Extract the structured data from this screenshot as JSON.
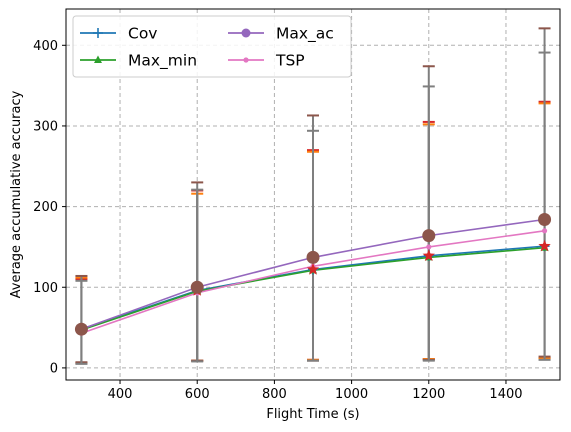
{
  "chart_data": {
    "type": "line",
    "xlabel": "Flight Time (s)",
    "ylabel": "Average accumulative accuracy",
    "x": [
      300,
      600,
      900,
      1200,
      1500
    ],
    "xlim": [
      260,
      1540
    ],
    "ylim": [
      -15,
      445
    ],
    "xticks": [
      400,
      600,
      800,
      1000,
      1200,
      1400
    ],
    "yticks": [
      0,
      100,
      200,
      300,
      400
    ],
    "grid": true,
    "legend_position": "top-left",
    "series": [
      {
        "name": "Cov",
        "values": [
          48,
          96,
          122,
          139,
          151
        ],
        "color": "#1f77b4",
        "marker": "plus",
        "err_low": [
          6,
          9,
          10,
          11,
          12
        ],
        "err_high": [
          110,
          220,
          270,
          305,
          330
        ]
      },
      {
        "name": "Max_min",
        "values": [
          47,
          95,
          121,
          137,
          149
        ],
        "color": "#2ca02c",
        "marker": "triangle",
        "err_low": [
          6,
          9,
          10,
          11,
          12
        ],
        "err_high": [
          112,
          216,
          268,
          302,
          328
        ]
      },
      {
        "name": "Max_ac",
        "values": [
          48,
          100,
          137,
          164,
          184
        ],
        "color": "#9467bd",
        "marker": "circle",
        "err_low": [
          7,
          9,
          9,
          10,
          14
        ],
        "err_high": [
          114,
          230,
          313,
          374,
          421
        ]
      },
      {
        "name": "TSP",
        "values": [
          43,
          93,
          126,
          150,
          170
        ],
        "color": "#e377c2",
        "marker": "dot",
        "err_low": [
          5,
          8,
          9,
          9,
          10
        ],
        "err_high": [
          108,
          221,
          294,
          349,
          391
        ]
      }
    ],
    "errorbar_color": "#7f7f7f",
    "cap_colors": [
      "#d62728",
      "#ff7f0e",
      "#8c564b",
      "#7f7f7f"
    ],
    "highlight_markers": [
      {
        "series": "Cov",
        "color": "#d62728",
        "marker": "star"
      },
      {
        "series": "Max_ac",
        "color": "#8c564b",
        "marker": "circle"
      }
    ]
  }
}
